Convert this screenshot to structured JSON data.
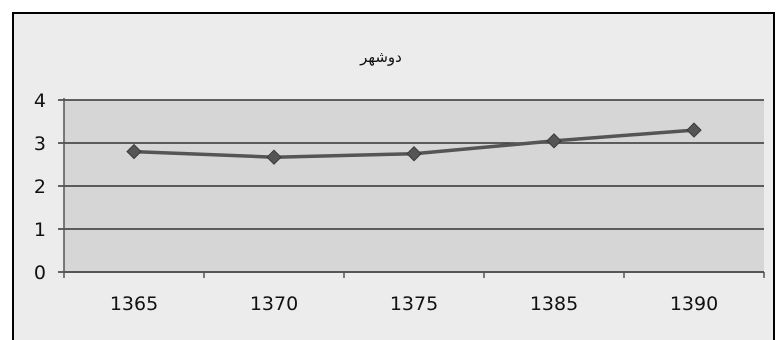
{
  "header_fragment": "",
  "chart_data": {
    "type": "line",
    "title": "دوشهر",
    "categories": [
      "1365",
      "1370",
      "1375",
      "1385",
      "1390"
    ],
    "series": [
      {
        "values": [
          2.8,
          2.67,
          2.75,
          3.05,
          3.3
        ]
      }
    ],
    "ylim": [
      0,
      4
    ],
    "yticks": [
      0,
      1,
      2,
      3,
      4
    ],
    "grid": true,
    "legend": "none",
    "colors": {
      "line": "#555555",
      "marker": "#555555",
      "grid": "#333333",
      "plot_bg": "#d6d6d6",
      "outer_bg": "#ececec"
    }
  }
}
